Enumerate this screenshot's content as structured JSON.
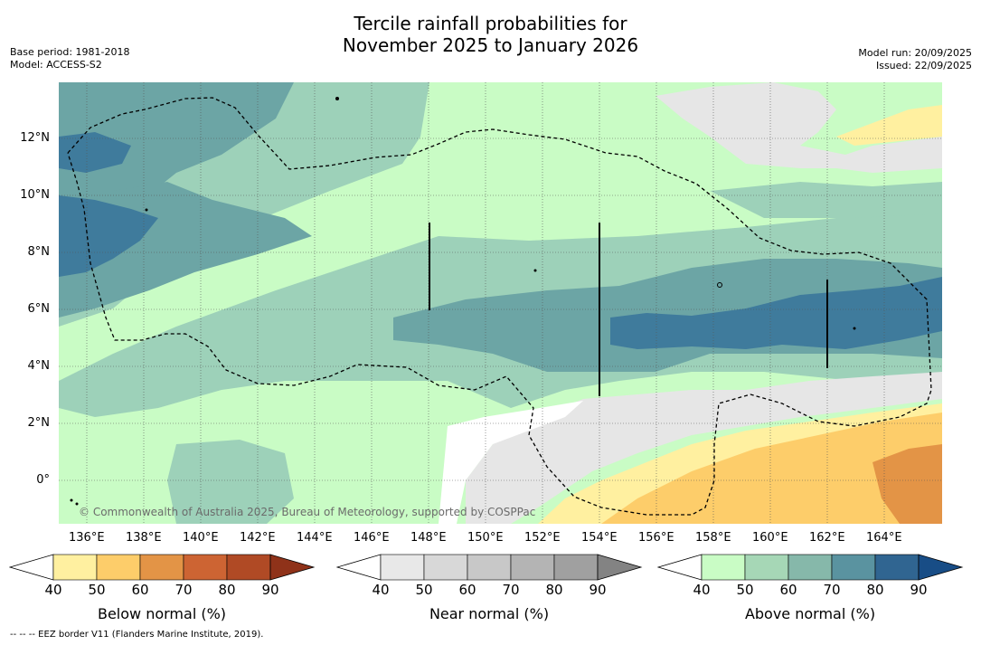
{
  "title_line1": "Tercile rainfall probabilities for",
  "title_line2": "November 2025 to January 2026",
  "meta_left": {
    "base_period": "Base period: 1981-2018",
    "model": "Model: ACCESS-S2"
  },
  "meta_right": {
    "model_run": "Model run: 20/09/2025",
    "issued": "Issued: 22/09/2025"
  },
  "map": {
    "lat_labels": [
      "12°N",
      "10°N",
      "8°N",
      "6°N",
      "4°N",
      "2°N",
      "0°"
    ],
    "lon_labels": [
      "136°E",
      "138°E",
      "140°E",
      "142°E",
      "144°E",
      "146°E",
      "148°E",
      "150°E",
      "152°E",
      "154°E",
      "156°E",
      "158°E",
      "160°E",
      "162°E",
      "164°E"
    ],
    "copyright": "© Commonwealth of Australia 2025, Bureau of Meteorology, supported by COSPPac"
  },
  "colorbars": [
    {
      "title": "Below normal (%)",
      "ticks": [
        "40",
        "50",
        "60",
        "70",
        "80",
        "90"
      ],
      "colors": [
        "#fff0a0",
        "#fdcd6a",
        "#e39446",
        "#cd6433",
        "#b04a25",
        "#8f3219"
      ]
    },
    {
      "title": "Near normal (%)",
      "ticks": [
        "40",
        "50",
        "60",
        "70",
        "80",
        "90"
      ],
      "colors": [
        "#e8e8e8",
        "#d8d8d8",
        "#c8c8c8",
        "#b4b4b4",
        "#a0a0a0",
        "#838383"
      ]
    },
    {
      "title": "Above normal (%)",
      "ticks": [
        "40",
        "50",
        "60",
        "70",
        "80",
        "90"
      ],
      "colors": [
        "#c9fcc5",
        "#a6d7b6",
        "#86b8aa",
        "#5a93a0",
        "#306591",
        "#184d86"
      ]
    }
  ],
  "footer": "--  --  -- EEZ border V11 (Flanders Marine Institute, 2019)."
}
